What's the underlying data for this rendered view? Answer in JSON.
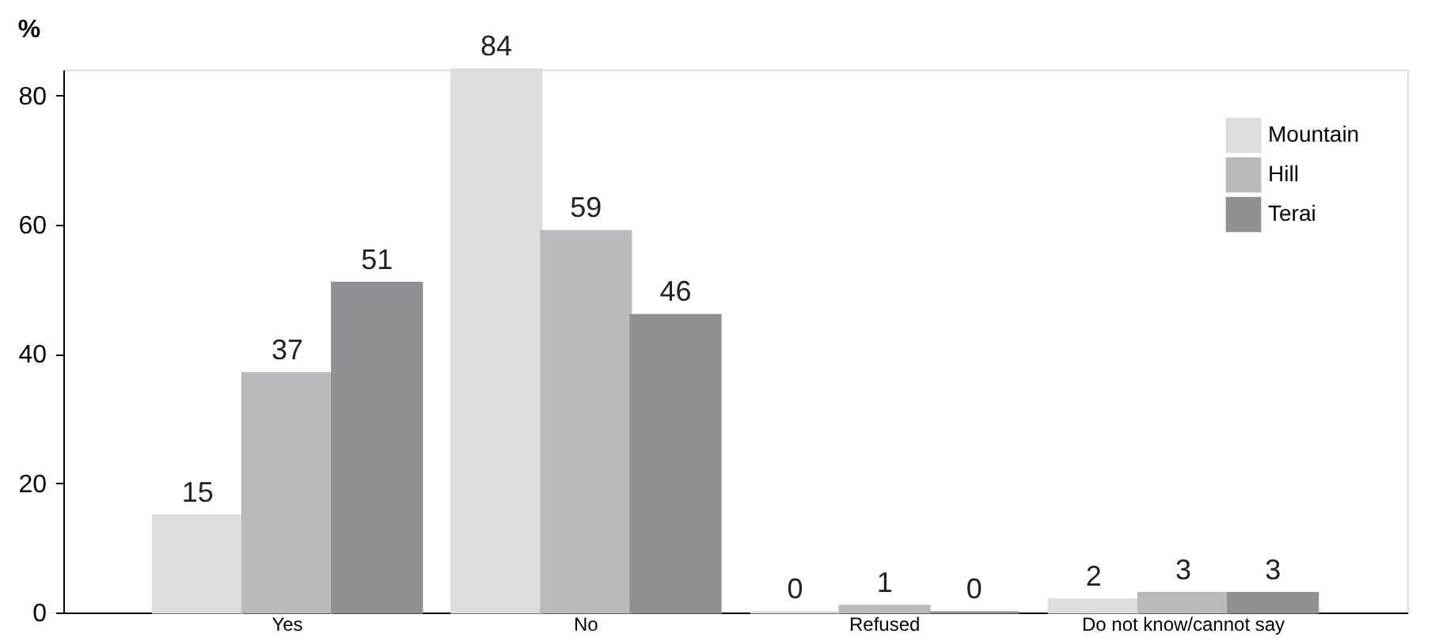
{
  "chart_data": {
    "type": "bar",
    "ylabel": "%",
    "categories": [
      "Yes",
      "No",
      "Refused",
      "Do not know/cannot say"
    ],
    "series": [
      {
        "name": "Mountain",
        "color": "#dcdddf",
        "values": [
          15,
          84,
          0,
          2
        ]
      },
      {
        "name": "Hill",
        "color": "#b9babd",
        "values": [
          37,
          59,
          1,
          3
        ]
      },
      {
        "name": "Terai",
        "color": "#8f9094",
        "values": [
          51,
          46,
          0,
          3
        ]
      }
    ],
    "ylim": [
      0,
      84
    ],
    "yticks": [
      0,
      20,
      40,
      60,
      80
    ],
    "grid": false,
    "legend": "top right",
    "data_labels": true
  }
}
